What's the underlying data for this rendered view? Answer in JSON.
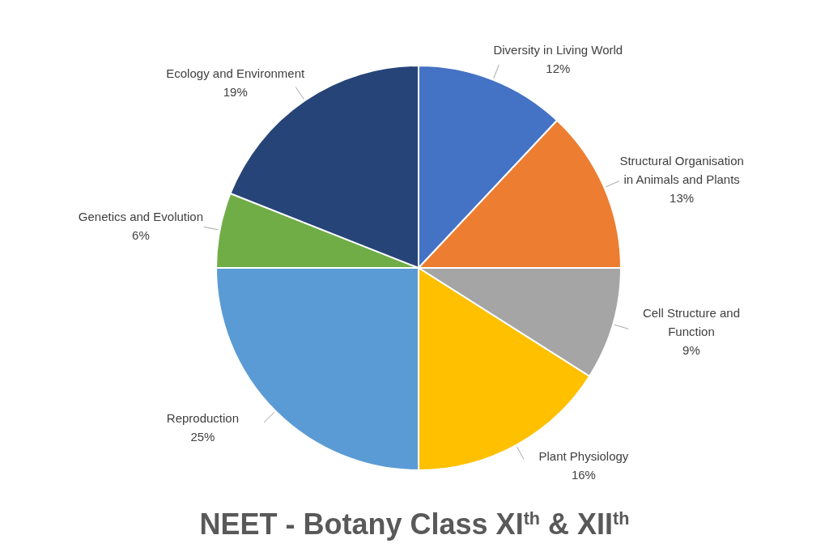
{
  "chart_data": {
    "type": "pie",
    "title": "NEET - Botany Class XI$^{th}$ & XII$^{th}$",
    "categories": [
      "Diversity in Living World",
      "Structural Organisation in Animals and Plants",
      "Cell Structure and Function",
      "Plant Physiology",
      "Reproduction",
      "Genetics and Evolution",
      "Ecology and Environment"
    ],
    "values": [
      12,
      13,
      9,
      16,
      25,
      6,
      19
    ],
    "value_labels": [
      "12%",
      "13%",
      "9%",
      "16%",
      "25%",
      "6%",
      "19%"
    ],
    "colors": [
      "#4472c4",
      "#ed7d31",
      "#a5a5a5",
      "#ffc000",
      "#5b9bd5",
      "#70ad47",
      "#264478"
    ]
  }
}
